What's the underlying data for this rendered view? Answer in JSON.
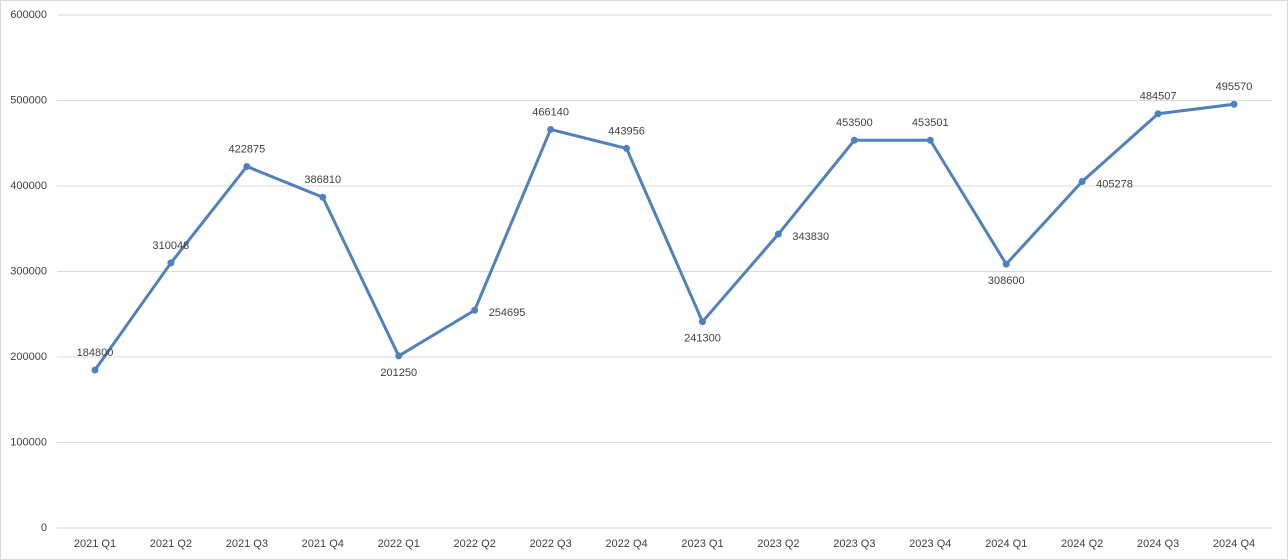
{
  "chart_data": {
    "type": "line",
    "categories": [
      "2021 Q1",
      "2021 Q2",
      "2021 Q3",
      "2021 Q4",
      "2022 Q1",
      "2022 Q2",
      "2022 Q3",
      "2022 Q4",
      "2023 Q1",
      "2023 Q2",
      "2023 Q3",
      "2023 Q4",
      "2024 Q1",
      "2024 Q2",
      "2024 Q3",
      "2024 Q4"
    ],
    "values": [
      184800,
      310048,
      422875,
      386810,
      201250,
      254695,
      466140,
      443956,
      241300,
      343830,
      453500,
      453501,
      308600,
      405278,
      484507,
      495570
    ],
    "color": "#4f81bd",
    "ylim": [
      0,
      600000
    ],
    "yticks": [
      0,
      100000,
      200000,
      300000,
      400000,
      500000,
      600000
    ],
    "grid": true
  }
}
